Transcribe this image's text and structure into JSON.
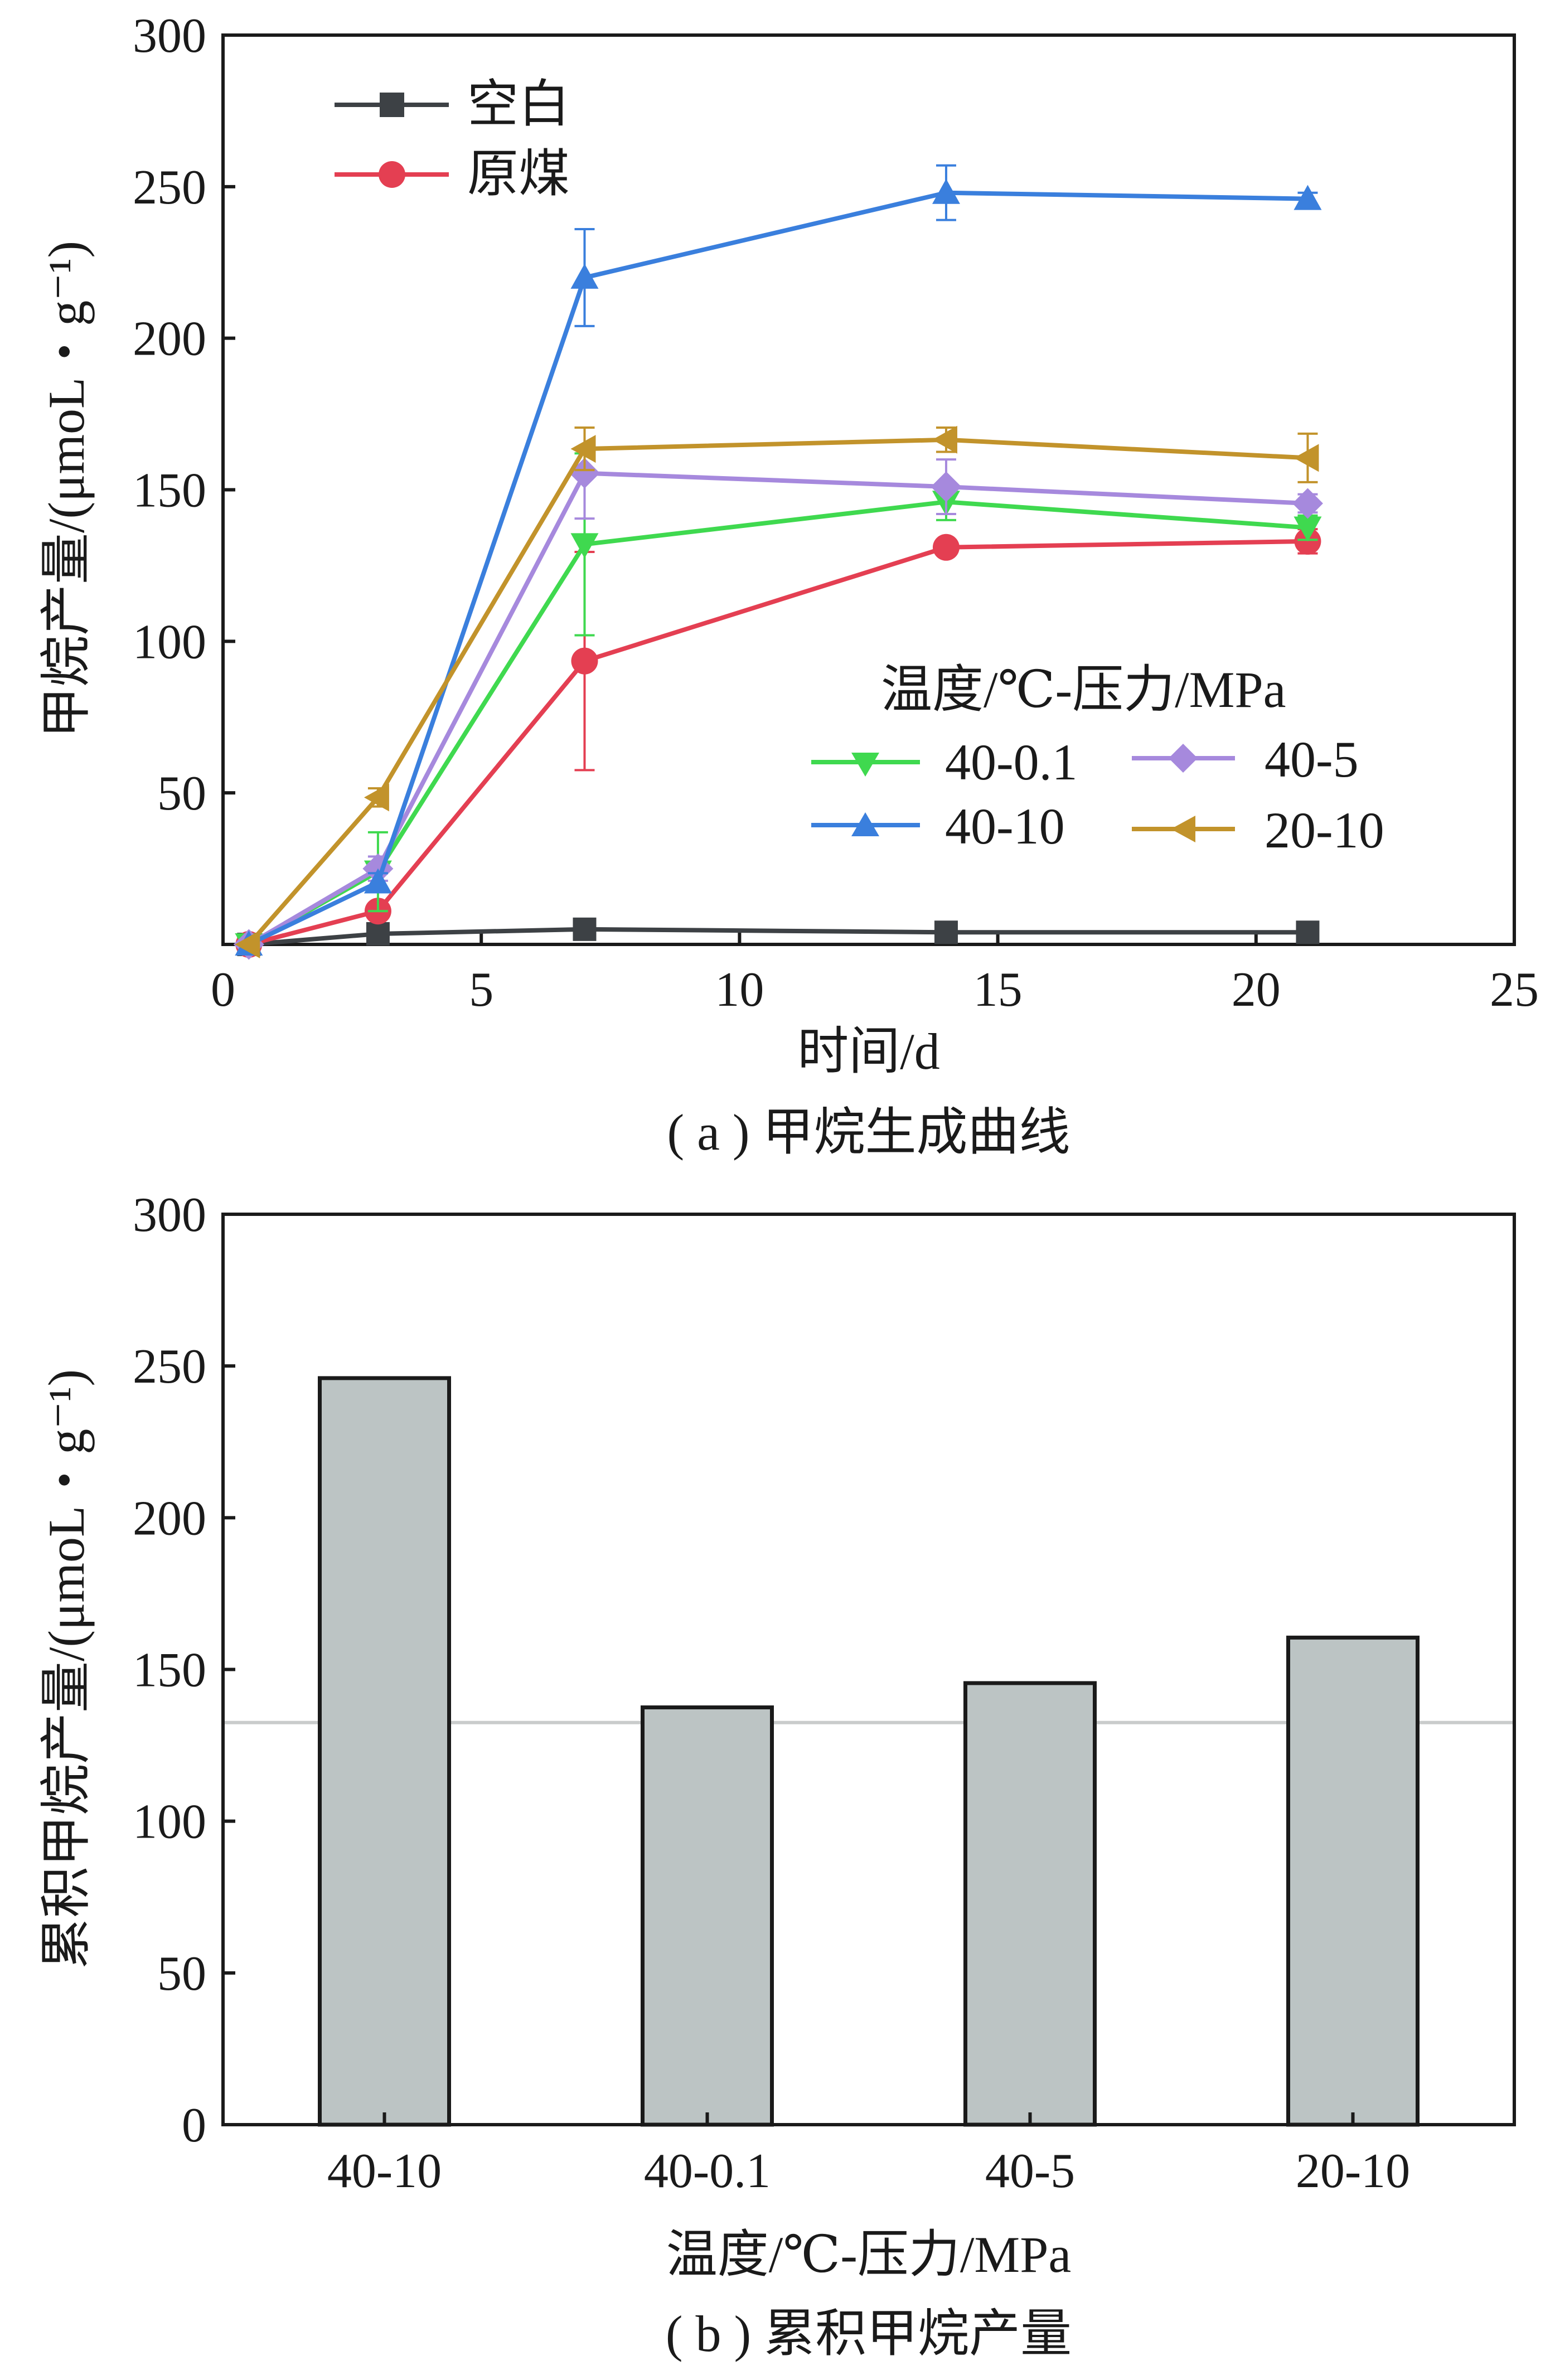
{
  "chart_data": [
    {
      "type": "line",
      "caption": "( a ) 甲烷生成曲线",
      "xlabel": "时间/d",
      "ylabel": "甲烷产量/(μmoL・g⁻¹)",
      "xlim": [
        0,
        25
      ],
      "ylim": [
        0,
        300
      ],
      "xticks": [
        "0",
        "5",
        "10",
        "15",
        "20",
        "25"
      ],
      "yticks": [
        "50",
        "100",
        "150",
        "200",
        "250",
        "300"
      ],
      "grid": false,
      "x": [
        0.5,
        3,
        7,
        14,
        21
      ],
      "legend_main": [
        "空白",
        "原煤"
      ],
      "legend_title": "温度/℃-压力/MPa",
      "series": [
        {
          "name": "空白",
          "marker": "square",
          "color": "#3d4145",
          "values": [
            0,
            3.5,
            5,
            4,
            4
          ],
          "errors": [
            0,
            0,
            0,
            0,
            0
          ]
        },
        {
          "name": "原煤",
          "marker": "circle",
          "color": "#e43f52",
          "values": [
            0,
            11,
            93.5,
            131,
            133
          ],
          "errors": [
            0,
            0,
            36,
            0,
            4
          ]
        },
        {
          "name": "40-0.1",
          "marker": "triangle-down",
          "color": "#3fd94f",
          "values": [
            0,
            24,
            132,
            146,
            137.5
          ],
          "errors": [
            0,
            13,
            30,
            6,
            4
          ]
        },
        {
          "name": "40-5",
          "marker": "diamond",
          "color": "#a689dd",
          "values": [
            0,
            25,
            155.5,
            151,
            145.5
          ],
          "errors": [
            0,
            4,
            15,
            9,
            3
          ]
        },
        {
          "name": "40-10",
          "marker": "triangle-up",
          "color": "#3a7fdd",
          "values": [
            0,
            20.5,
            220,
            248,
            246
          ],
          "errors": [
            0,
            3,
            16,
            9,
            2
          ]
        },
        {
          "name": "20-10",
          "marker": "triangle-left",
          "color": "#c2932b",
          "values": [
            0,
            48.5,
            163.5,
            166.5,
            160.5
          ],
          "errors": [
            0,
            3,
            7,
            4,
            8
          ]
        }
      ]
    },
    {
      "type": "bar",
      "caption": "( b ) 累积甲烷产量",
      "xlabel": "温度/℃-压力/MPa",
      "ylabel": "累积甲烷产量/(μmoL・g⁻¹)",
      "ylim": [
        0,
        300
      ],
      "yticks": [
        "0",
        "50",
        "100",
        "150",
        "200",
        "250",
        "300"
      ],
      "categories": [
        "40-10",
        "40-0.1",
        "40-5",
        "20-10"
      ],
      "values": [
        246,
        137.5,
        145.5,
        160.5
      ],
      "reference_line": 132.5,
      "bar_color": "#bcc4c4",
      "reference_color": "#c9cccc"
    }
  ]
}
